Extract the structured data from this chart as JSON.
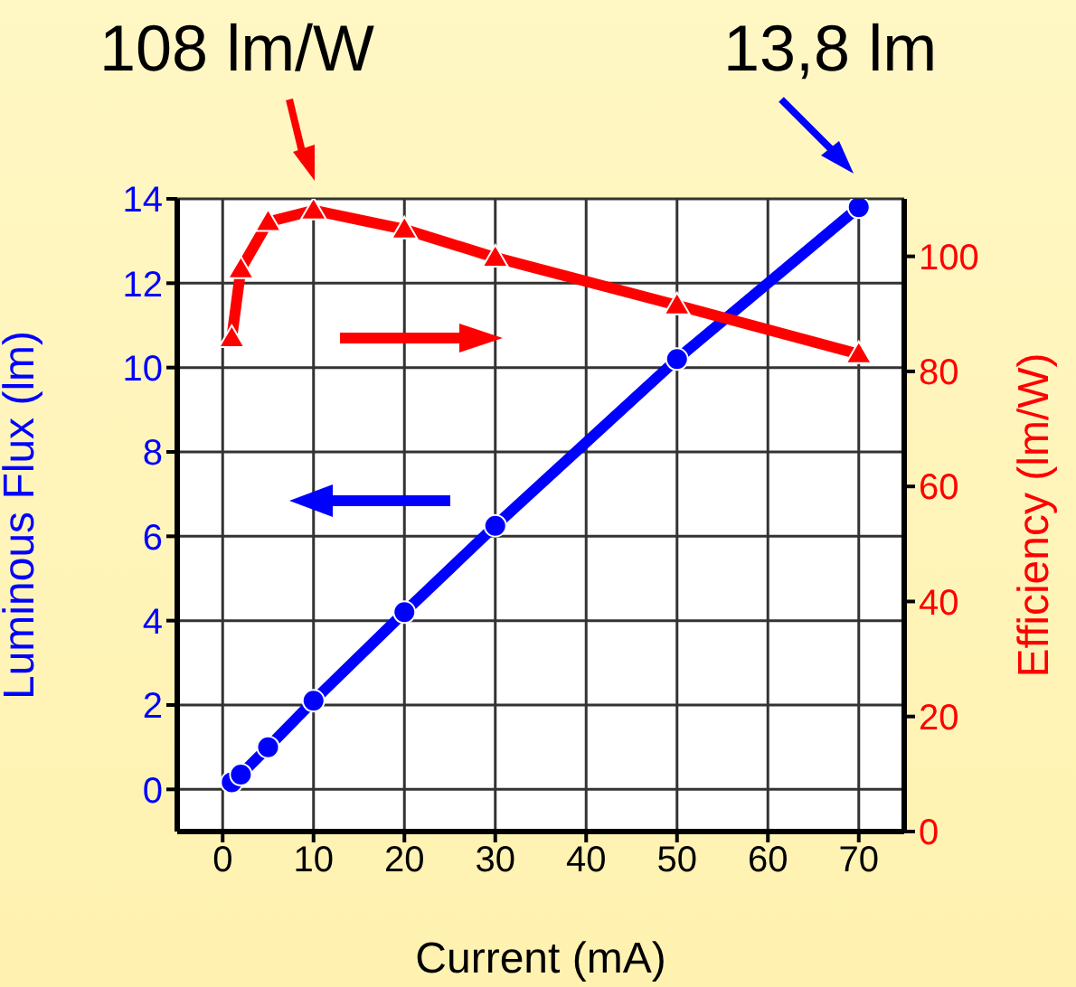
{
  "chart_data": {
    "type": "line",
    "xlabel": "Current (mA)",
    "ylabel": "Luminous Flux (lm)",
    "y2label": "Efficiency (lm/W)",
    "annotations": [
      "108 lm/W",
      "13,8 lm"
    ],
    "x": [
      1,
      2,
      5,
      10,
      20,
      30,
      50,
      70
    ],
    "series": [
      {
        "color": "#0000ff",
        "values": [
          0.17,
          0.35,
          1.0,
          2.1,
          4.2,
          6.25,
          10.2,
          13.8
        ],
        "marker": "circle"
      },
      {
        "color": "#ff0000",
        "values": [
          85.8,
          97.8,
          106,
          108,
          104.7,
          99.8,
          91.5,
          83
        ],
        "marker": "triangle",
        "axis": "y2"
      }
    ],
    "xlim": [
      -5,
      75
    ],
    "xticks": [
      0,
      10,
      20,
      30,
      40,
      50,
      60,
      70
    ],
    "ylim": [
      -1,
      14
    ],
    "yticks": [
      0,
      2,
      4,
      6,
      8,
      10,
      12,
      14
    ],
    "y2lim": [
      0,
      110
    ],
    "y2ticks": [
      0,
      20,
      40,
      60,
      80,
      100
    ],
    "grid": true,
    "line_style": "solid"
  }
}
